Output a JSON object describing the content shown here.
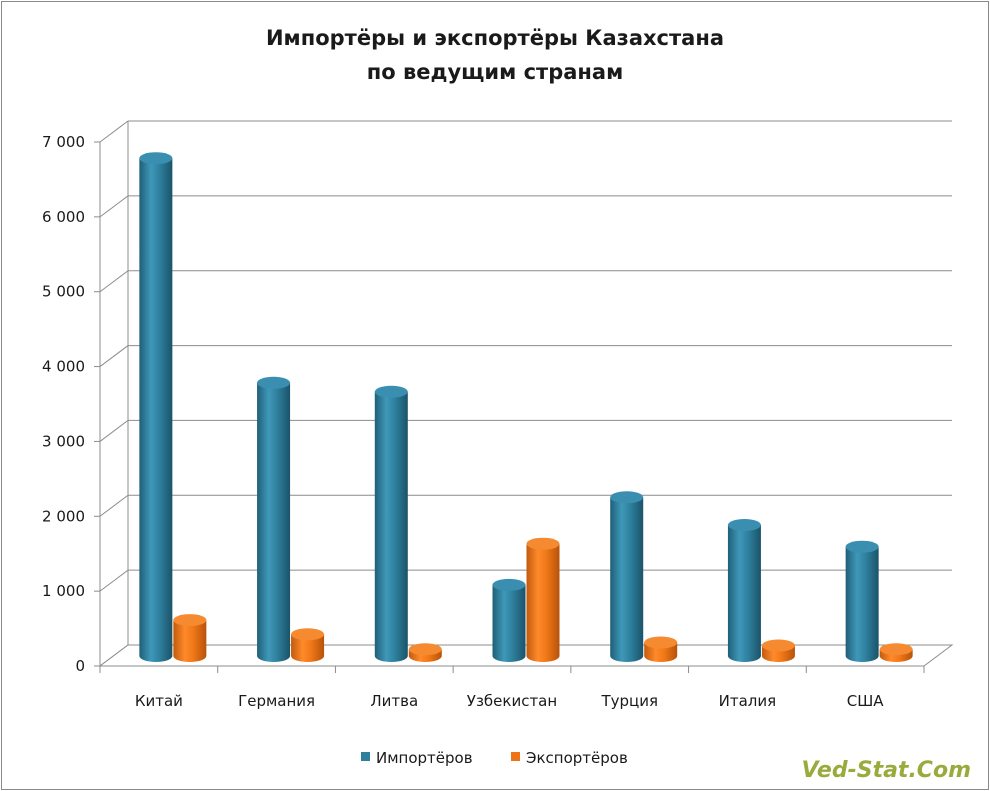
{
  "chart_data": {
    "type": "bar",
    "title": [
      "Импортёры и экспортёры Казахстана",
      "по ведущим странам"
    ],
    "categories": [
      "Китай",
      "Германия",
      "Литва",
      "Узбекистан",
      "Турция",
      "Италия",
      "США"
    ],
    "series": [
      {
        "name": "Импортёров",
        "color": "#2f7f9e",
        "values": [
          6650,
          3650,
          3530,
          950,
          2120,
          1750,
          1460
        ]
      },
      {
        "name": "Экспортёров",
        "color": "#ee7418",
        "values": [
          480,
          290,
          90,
          1500,
          180,
          140,
          90
        ]
      }
    ],
    "ylim": [
      0,
      7000
    ],
    "yticks": [
      "0",
      "1 000",
      "2 000",
      "3 000",
      "4 000",
      "5 000",
      "6 000",
      "7 000"
    ],
    "ytick_values": [
      0,
      1000,
      2000,
      3000,
      4000,
      5000,
      6000,
      7000
    ],
    "grid": true,
    "legend_position": "bottom",
    "style": "3d-cylinder"
  },
  "watermark": "Ved-Stat.Com"
}
